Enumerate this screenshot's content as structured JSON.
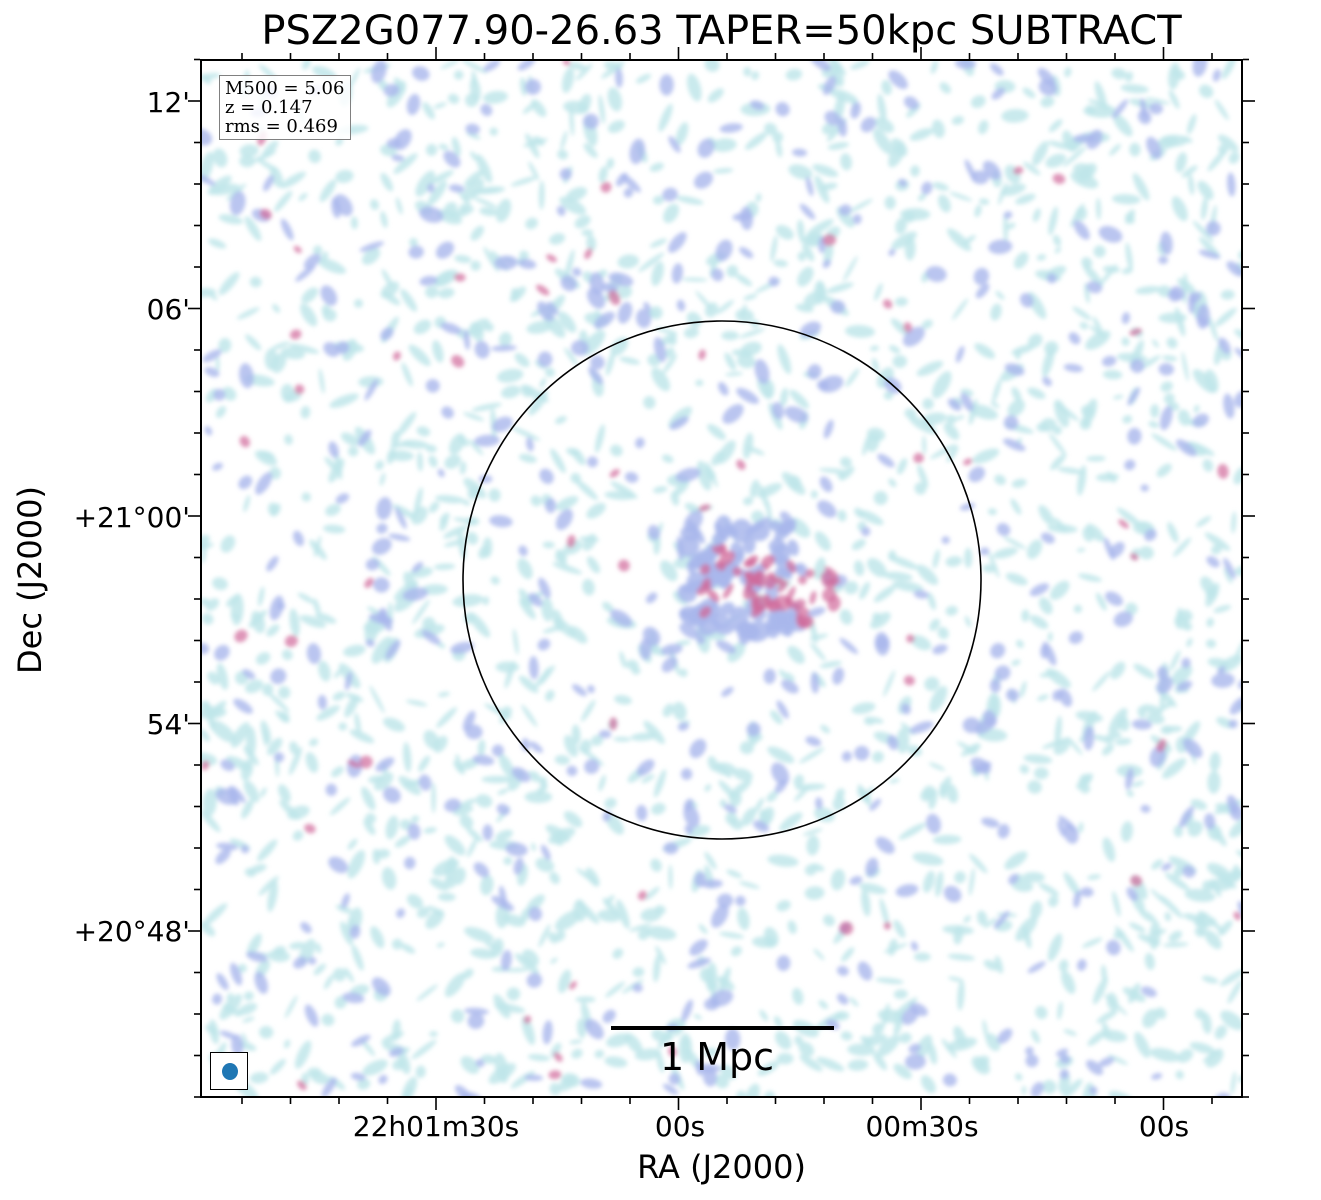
{
  "title": "PSZ2G077.90-26.63 TAPER=50kpc SUBTRACT",
  "info": {
    "mass": "M500 = 5.06",
    "redshift": "z = 0.147",
    "rms": "rms = 0.469"
  },
  "scalebar": {
    "label": "1 Mpc"
  },
  "axes": {
    "xlabel": "RA (J2000)",
    "ylabel": "Dec (J2000)",
    "xticks": [
      "22h01m30s",
      "00s",
      "00m30s",
      "00s"
    ],
    "yticks": [
      "12'",
      "06'",
      "+21°00'",
      "54'",
      "+20°48'"
    ]
  },
  "colors": {
    "background": "#ffffff",
    "faint_emission": "#bfe6ea",
    "medium_emission": "#a9b7ec",
    "strong_emission": "#d06a9a",
    "beam": "#1f77b4",
    "info_border": "#808080"
  },
  "icons": {
    "beam": "filled-ellipse",
    "aperture": "circle-outline"
  }
}
